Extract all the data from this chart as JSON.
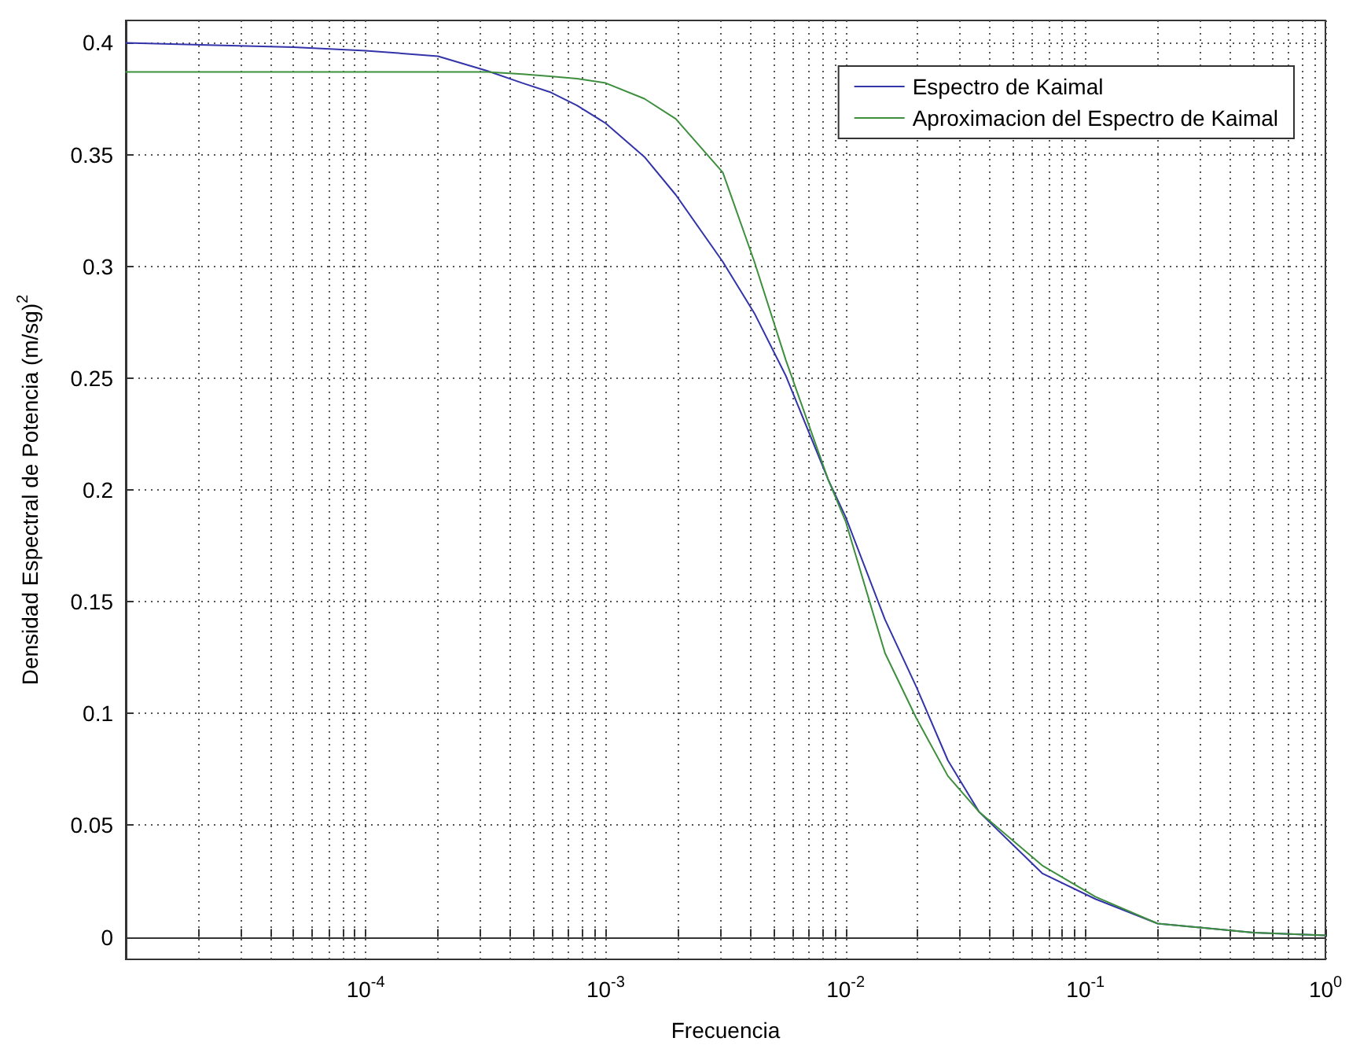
{
  "chart_data": {
    "type": "line",
    "xlabel": "Frecuencia",
    "ylabel": "Densidad Espectral de Potencia (m/sg)$^{2}$",
    "x": [
      1e-05,
      5e-05,
      0.0001,
      0.0002,
      0.00032,
      0.00045,
      0.000585,
      0.00076,
      0.001,
      0.00145,
      0.00196,
      0.00308,
      0.00417,
      0.00564,
      0.00847,
      0.01,
      0.0146,
      0.0197,
      0.0267,
      0.036,
      0.066,
      0.11,
      0.2,
      0.5,
      1
    ],
    "series": [
      {
        "name": "Espectro de Kaimal",
        "color": "#3333aa",
        "values": [
          0.4,
          0.398,
          0.3965,
          0.394,
          0.3875,
          0.382,
          0.378,
          0.372,
          0.364,
          0.349,
          0.332,
          0.302,
          0.279,
          0.251,
          0.2045,
          0.188,
          0.142,
          0.112,
          0.079,
          0.056,
          0.0285,
          0.017,
          0.006,
          0.002,
          0.0007
        ]
      },
      {
        "name": "Aproximacion del Espectro de Kaimal",
        "color": "#3d8f3d",
        "values": [
          0.387,
          0.387,
          0.387,
          0.387,
          0.387,
          0.386,
          0.385,
          0.384,
          0.382,
          0.375,
          0.366,
          0.342,
          0.302,
          0.258,
          0.2045,
          0.186,
          0.127,
          0.098,
          0.072,
          0.056,
          0.032,
          0.018,
          0.006,
          0.002,
          0.0007
        ]
      }
    ],
    "log": "x",
    "xlim": [
      1e-05,
      1
    ],
    "xticks": [
      {
        "value": 1e-05,
        "label": null
      },
      {
        "value": 2e-05,
        "label": null
      },
      {
        "value": 3e-05,
        "label": null
      },
      {
        "value": 4e-05,
        "label": null
      },
      {
        "value": 5e-05,
        "label": null
      },
      {
        "value": 6e-05,
        "label": null
      },
      {
        "value": 7e-05,
        "label": null
      },
      {
        "value": 8e-05,
        "label": null
      },
      {
        "value": 9e-05,
        "label": null
      },
      {
        "value": 0.0001,
        "label": "10$^{-4}$"
      },
      {
        "value": 0.0002,
        "label": null
      },
      {
        "value": 0.0003,
        "label": null
      },
      {
        "value": 0.0004,
        "label": null
      },
      {
        "value": 0.0005,
        "label": null
      },
      {
        "value": 0.0006,
        "label": null
      },
      {
        "value": 0.0007,
        "label": null
      },
      {
        "value": 0.0008,
        "label": null
      },
      {
        "value": 0.0009,
        "label": null
      },
      {
        "value": 0.001,
        "label": "10$^{-3}$"
      },
      {
        "value": 0.002,
        "label": null
      },
      {
        "value": 0.003,
        "label": null
      },
      {
        "value": 0.004,
        "label": null
      },
      {
        "value": 0.005,
        "label": null
      },
      {
        "value": 0.006,
        "label": null
      },
      {
        "value": 0.007,
        "label": null
      },
      {
        "value": 0.008,
        "label": null
      },
      {
        "value": 0.009,
        "label": null
      },
      {
        "value": 0.01,
        "label": "10$^{-2}$"
      },
      {
        "value": 0.02,
        "label": null
      },
      {
        "value": 0.03,
        "label": null
      },
      {
        "value": 0.04,
        "label": null
      },
      {
        "value": 0.05,
        "label": null
      },
      {
        "value": 0.06,
        "label": null
      },
      {
        "value": 0.07,
        "label": null
      },
      {
        "value": 0.08,
        "label": null
      },
      {
        "value": 0.09,
        "label": null
      },
      {
        "value": 0.1,
        "label": "10$^{-1}$"
      },
      {
        "value": 0.2,
        "label": null
      },
      {
        "value": 0.3,
        "label": null
      },
      {
        "value": 0.4,
        "label": null
      },
      {
        "value": 0.5,
        "label": null
      },
      {
        "value": 0.6,
        "label": null
      },
      {
        "value": 0.7,
        "label": null
      },
      {
        "value": 0.8,
        "label": null
      },
      {
        "value": 0.9,
        "label": null
      },
      {
        "value": 1,
        "label": "10$^{0}$"
      }
    ],
    "ylim": [
      -0.01,
      0.41
    ],
    "yticks": [
      0,
      0.05,
      0.1,
      0.15,
      0.2,
      0.25,
      0.3,
      0.35,
      0.4
    ],
    "grid": true,
    "legend": "top right",
    "marker": "none",
    "line_style": "solid"
  }
}
